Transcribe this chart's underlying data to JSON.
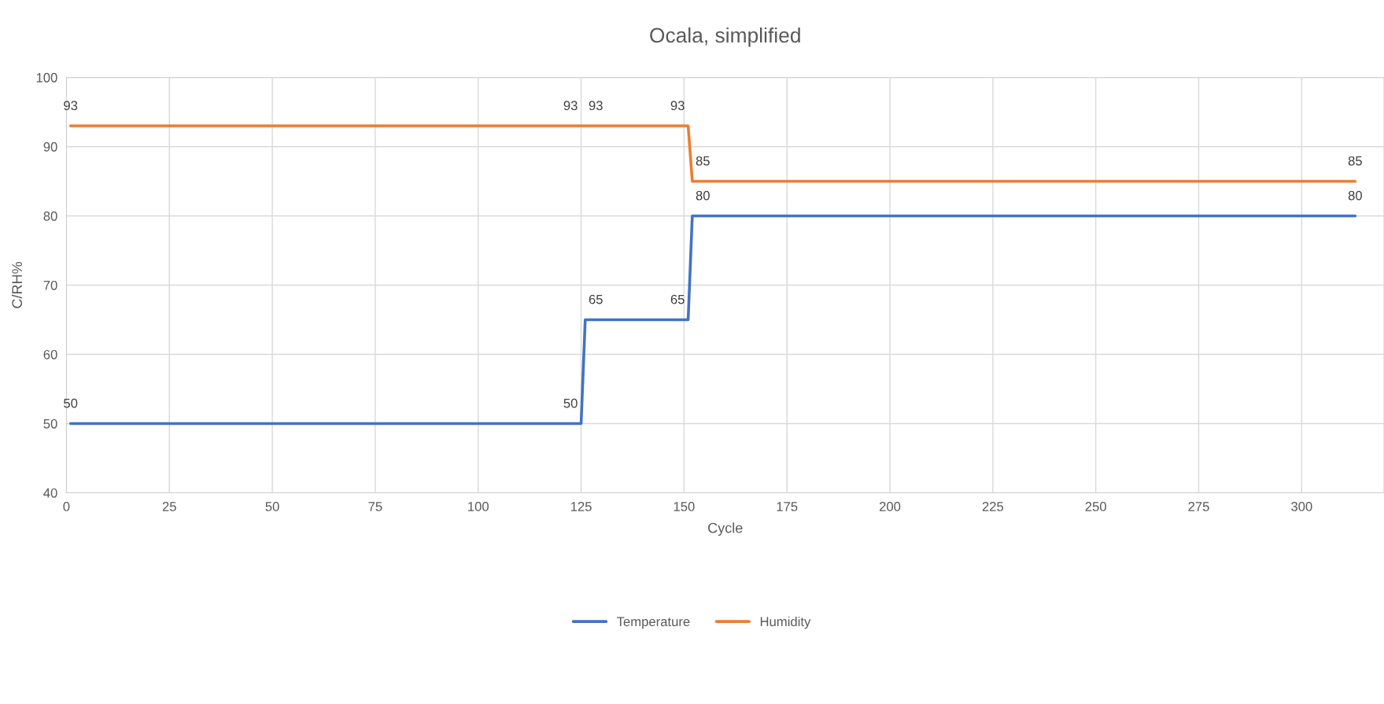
{
  "chart_data": {
    "type": "line",
    "title": "Ocala, simplified",
    "xlabel": "Cycle",
    "ylabel": "C/RH%",
    "xlim": [
      0,
      320
    ],
    "xticks": [
      0,
      25,
      50,
      75,
      100,
      125,
      150,
      175,
      200,
      225,
      250,
      275,
      300
    ],
    "ylim": [
      40,
      100
    ],
    "yticks": [
      40,
      50,
      60,
      70,
      80,
      90,
      100
    ],
    "series": [
      {
        "name": "Temperature",
        "color": "#4472c4",
        "x": [
          1,
          125,
          126,
          151,
          152,
          313
        ],
        "values": [
          50,
          50,
          65,
          65,
          80,
          80
        ]
      },
      {
        "name": "Humidity",
        "color": "#ed7d31",
        "x": [
          1,
          125,
          126,
          151,
          152,
          313
        ],
        "values": [
          93,
          93,
          93,
          93,
          85,
          85
        ]
      }
    ],
    "data_labels": true,
    "grid": true,
    "legend": "bottom",
    "marker": "none",
    "line_style": "solid"
  }
}
